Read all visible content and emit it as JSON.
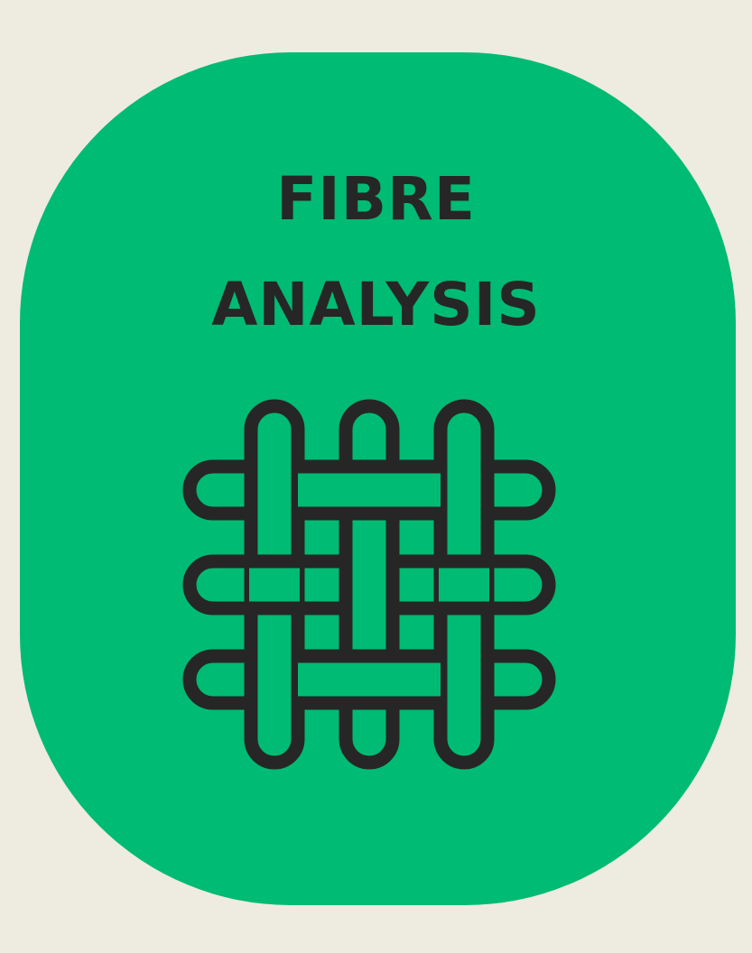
{
  "title": {
    "line1": "FIBRE",
    "line2": "ANALYSIS"
  },
  "icon": {
    "name": "woven-fibre-icon"
  },
  "colors": {
    "background": "#EEEBE0",
    "card": "#00BB73",
    "ink": "#262626"
  }
}
